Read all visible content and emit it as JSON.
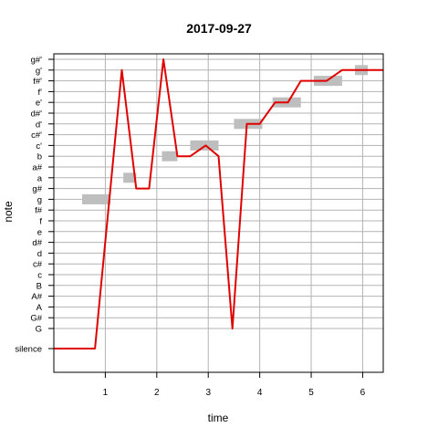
{
  "chart_data": {
    "type": "line",
    "title": "2017-09-27",
    "xlabel": "time",
    "ylabel": "note",
    "xlim": [
      0,
      6.4
    ],
    "x_ticks": [
      1,
      2,
      3,
      4,
      5,
      6
    ],
    "y_ticks": [
      {
        "value": -1,
        "label": "silence"
      },
      {
        "value": 0,
        "label": "G"
      },
      {
        "value": 1,
        "label": "G#"
      },
      {
        "value": 2,
        "label": "A"
      },
      {
        "value": 3,
        "label": "A#"
      },
      {
        "value": 4,
        "label": "B"
      },
      {
        "value": 5,
        "label": "c"
      },
      {
        "value": 6,
        "label": "c#"
      },
      {
        "value": 7,
        "label": "d"
      },
      {
        "value": 8,
        "label": "d#"
      },
      {
        "value": 9,
        "label": "e"
      },
      {
        "value": 10,
        "label": "f"
      },
      {
        "value": 11,
        "label": "f#"
      },
      {
        "value": 12,
        "label": "g"
      },
      {
        "value": 13,
        "label": "g#"
      },
      {
        "value": 14,
        "label": "a"
      },
      {
        "value": 15,
        "label": "a#"
      },
      {
        "value": 16,
        "label": "b"
      },
      {
        "value": 17,
        "label": "c'"
      },
      {
        "value": 18,
        "label": "c#'"
      },
      {
        "value": 19,
        "label": "d'"
      },
      {
        "value": 20,
        "label": "d#'"
      },
      {
        "value": 21,
        "label": "e'"
      },
      {
        "value": 22,
        "label": "f'"
      },
      {
        "value": 23,
        "label": "f#'"
      },
      {
        "value": 24,
        "label": "g'"
      },
      {
        "value": 25,
        "label": "g#'"
      }
    ],
    "grid": true,
    "note_bars": [
      {
        "start": 0.55,
        "end": 1.1,
        "note": 12
      },
      {
        "start": 1.35,
        "end": 1.6,
        "note": 14
      },
      {
        "start": 2.1,
        "end": 2.4,
        "note": 16
      },
      {
        "start": 2.65,
        "end": 3.2,
        "note": 17
      },
      {
        "start": 3.5,
        "end": 4.05,
        "note": 19
      },
      {
        "start": 4.25,
        "end": 4.8,
        "note": 21
      },
      {
        "start": 5.05,
        "end": 5.6,
        "note": 23
      },
      {
        "start": 5.85,
        "end": 6.1,
        "note": 24
      }
    ],
    "series": [
      {
        "color": "#e00000",
        "points": [
          [
            0,
            -1
          ],
          [
            0.8,
            -1
          ],
          [
            1.32,
            24
          ],
          [
            1.6,
            13
          ],
          [
            1.85,
            13
          ],
          [
            2.13,
            25
          ],
          [
            2.4,
            16
          ],
          [
            2.65,
            16
          ],
          [
            2.95,
            17
          ],
          [
            3.2,
            16
          ],
          [
            3.47,
            0
          ],
          [
            3.75,
            19
          ],
          [
            4.0,
            19
          ],
          [
            4.3,
            21
          ],
          [
            4.55,
            21
          ],
          [
            4.8,
            23
          ],
          [
            5.3,
            23
          ],
          [
            5.6,
            24
          ],
          [
            6.4,
            24
          ]
        ]
      }
    ]
  }
}
